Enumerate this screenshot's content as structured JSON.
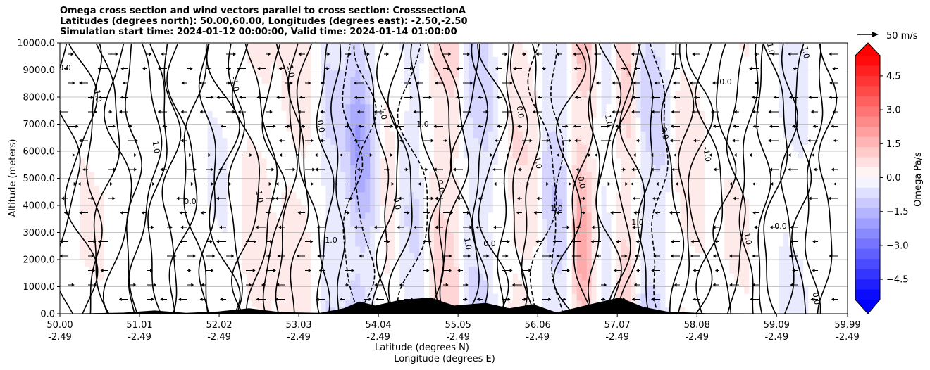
{
  "chart_data": {
    "type": "heatmap",
    "title_lines": [
      "Omega cross section and wind vectors parallel to cross section: CrosssectionA",
      "Latitudes (degrees north): 50.00,60.00, Longitudes (degrees east): -2.50,-2.50",
      "Simulation start time: 2024-01-12 00:00:00, Valid time: 2024-01-14 01:00:00"
    ],
    "ylabel": "Altitude (meters)",
    "xlabel_lines": [
      "Latitude (degrees N)",
      "Longitude (degrees E)"
    ],
    "ylim": [
      0,
      10000
    ],
    "xlim": [
      50.0,
      59.99
    ],
    "yticks": [
      0,
      1000,
      2000,
      3000,
      4000,
      5000,
      6000,
      7000,
      8000,
      9000,
      10000
    ],
    "ytick_labels": [
      "0.0",
      "1000.0",
      "2000.0",
      "3000.0",
      "4000.0",
      "5000.0",
      "6000.0",
      "7000.0",
      "8000.0",
      "9000.0",
      "10000.0"
    ],
    "xticks": [
      50.0,
      51.01,
      52.02,
      53.03,
      54.04,
      55.05,
      56.06,
      57.07,
      58.08,
      59.09,
      59.99
    ],
    "xtick_labels_top": [
      "50.00",
      "51.01",
      "52.02",
      "53.03",
      "54.04",
      "55.05",
      "56.06",
      "57.07",
      "58.08",
      "59.09",
      "59.99"
    ],
    "xtick_labels_bottom": [
      "-2.49",
      "-2.49",
      "-2.49",
      "-2.49",
      "-2.49",
      "-2.49",
      "-2.49",
      "-2.49",
      "-2.49",
      "-2.49",
      "-2.49"
    ],
    "colorbar": {
      "label": "Omega Pa/s",
      "range": [
        -5.4,
        5.4
      ],
      "tick_values": [
        4.5,
        3.0,
        1.5,
        0.0,
        -1.5,
        -3.0,
        -4.5
      ],
      "tick_labels": [
        "4.5",
        "3.0",
        "1.5",
        "0.0",
        "−1.5",
        "−3.0",
        "−4.5"
      ],
      "colors": [
        "#0000ff",
        "#ffffff",
        "#ff0000"
      ]
    },
    "quiver_key": {
      "label": "50 m/s"
    },
    "omega_columns": [
      {
        "lat": 50.4,
        "omega": 0.3
      },
      {
        "lat": 50.9,
        "omega": -0.2
      },
      {
        "lat": 51.5,
        "omega": 0.2
      },
      {
        "lat": 52.0,
        "omega": -0.3
      },
      {
        "lat": 52.5,
        "omega": 0.5
      },
      {
        "lat": 53.0,
        "omega": 0.6
      },
      {
        "lat": 53.5,
        "omega": -0.8
      },
      {
        "lat": 53.9,
        "omega": -2.5
      },
      {
        "lat": 54.1,
        "omega": 1.2
      },
      {
        "lat": 54.4,
        "omega": -0.8
      },
      {
        "lat": 54.9,
        "omega": 1.0
      },
      {
        "lat": 55.3,
        "omega": -1.0
      },
      {
        "lat": 55.9,
        "omega": 0.7
      },
      {
        "lat": 56.3,
        "omega": -1.2
      },
      {
        "lat": 56.7,
        "omega": 2.5
      },
      {
        "lat": 56.9,
        "omega": -2.0
      },
      {
        "lat": 57.1,
        "omega": 1.6
      },
      {
        "lat": 57.5,
        "omega": -1.0
      },
      {
        "lat": 58.0,
        "omega": 0.5
      },
      {
        "lat": 58.6,
        "omega": 0.3
      },
      {
        "lat": 59.3,
        "omega": -0.4
      },
      {
        "lat": 59.8,
        "omega": 0.2
      }
    ],
    "contour_labels": [
      "0.0",
      "-1.0",
      "1.0",
      "0.0",
      "-1.0",
      "1.0",
      "0.0",
      "-1.0",
      "0.0",
      "1.0",
      "-1.0",
      "0.0",
      "1.0",
      "0.0",
      "-1.0",
      "0.0"
    ],
    "terrain": [
      {
        "lat": 50.0,
        "h": 0
      },
      {
        "lat": 50.8,
        "h": 40
      },
      {
        "lat": 51.2,
        "h": 120
      },
      {
        "lat": 51.6,
        "h": 30
      },
      {
        "lat": 52.0,
        "h": 80
      },
      {
        "lat": 52.4,
        "h": 200
      },
      {
        "lat": 52.8,
        "h": 60
      },
      {
        "lat": 53.3,
        "h": 30
      },
      {
        "lat": 53.6,
        "h": 200
      },
      {
        "lat": 53.8,
        "h": 450
      },
      {
        "lat": 54.0,
        "h": 300
      },
      {
        "lat": 54.3,
        "h": 500
      },
      {
        "lat": 54.7,
        "h": 600
      },
      {
        "lat": 55.0,
        "h": 300
      },
      {
        "lat": 55.4,
        "h": 400
      },
      {
        "lat": 55.7,
        "h": 200
      },
      {
        "lat": 56.0,
        "h": 350
      },
      {
        "lat": 56.3,
        "h": 50
      },
      {
        "lat": 56.8,
        "h": 400
      },
      {
        "lat": 57.1,
        "h": 600
      },
      {
        "lat": 57.4,
        "h": 250
      },
      {
        "lat": 57.7,
        "h": 80
      },
      {
        "lat": 58.2,
        "h": 20
      },
      {
        "lat": 59.99,
        "h": 0
      }
    ]
  }
}
